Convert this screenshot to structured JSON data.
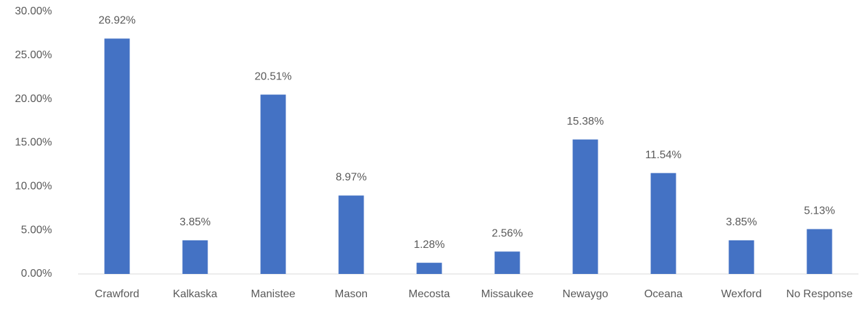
{
  "chart_data": {
    "type": "bar",
    "categories": [
      "Crawford",
      "Kalkaska",
      "Manistee",
      "Mason",
      "Mecosta",
      "Missaukee",
      "Newaygo",
      "Oceana",
      "Wexford",
      "No Response"
    ],
    "values": [
      26.92,
      3.85,
      20.51,
      8.97,
      1.28,
      2.56,
      15.38,
      11.54,
      3.85,
      5.13
    ],
    "value_labels": [
      "26.92%",
      "3.85%",
      "20.51%",
      "8.97%",
      "1.28%",
      "2.56%",
      "15.38%",
      "11.54%",
      "3.85%",
      "5.13%"
    ],
    "color": "#4472c4",
    "ylim": [
      0,
      30
    ],
    "yticks": [
      {
        "value": 0,
        "label": "0.00%"
      },
      {
        "value": 5,
        "label": "5.00%"
      },
      {
        "value": 10,
        "label": "10.00%"
      },
      {
        "value": 15,
        "label": "15.00%"
      },
      {
        "value": 20,
        "label": "20.00%"
      },
      {
        "value": 25,
        "label": "25.00%"
      },
      {
        "value": 30,
        "label": "30.00%"
      }
    ],
    "grid": false
  }
}
